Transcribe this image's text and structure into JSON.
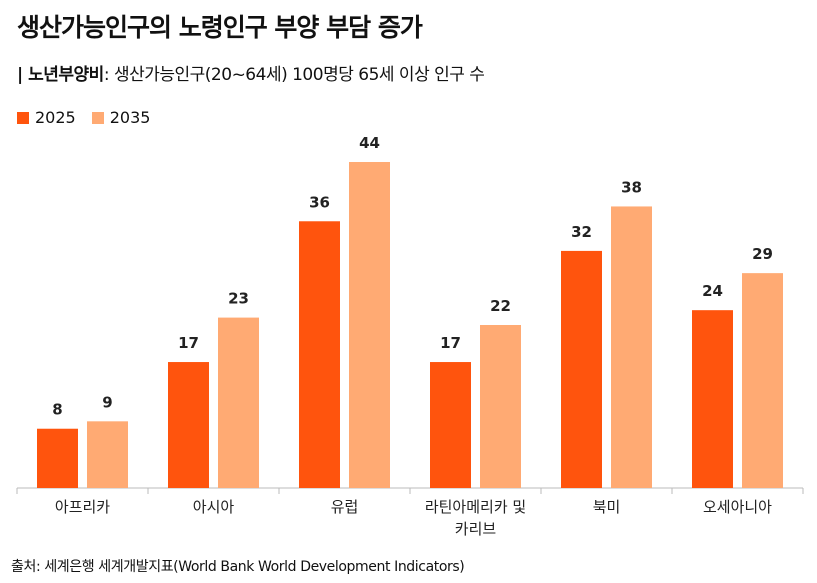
{
  "title": "생산가능인구의 노령인구 부양 부담 증가",
  "subtitle": {
    "bold": "| 노년부양비",
    "rest": ": 생산가능인구(20~64세) 100명당 65세 이상 인구 수"
  },
  "source": "출처: 세계은행 세계개발지표(World Bank World Development Indicators)",
  "chart_data": {
    "type": "bar",
    "title": "생산가능인구의 노령인구 부양 부담 증가",
    "categories": [
      [
        "아프리카"
      ],
      [
        "아시아"
      ],
      [
        "유럽"
      ],
      [
        "라틴아메리카 및",
        "카리브"
      ],
      [
        "북미"
      ],
      [
        "오세아니아"
      ]
    ],
    "series": [
      {
        "name": "2025",
        "color": "#FF540D",
        "values": [
          8,
          17,
          36,
          17,
          32,
          24
        ]
      },
      {
        "name": "2035",
        "color": "#FFAA73",
        "values": [
          9,
          23,
          44,
          22,
          38,
          29
        ]
      }
    ],
    "ylim": [
      0,
      44
    ],
    "grid": false,
    "legend": "top-left",
    "data_labels": true
  }
}
